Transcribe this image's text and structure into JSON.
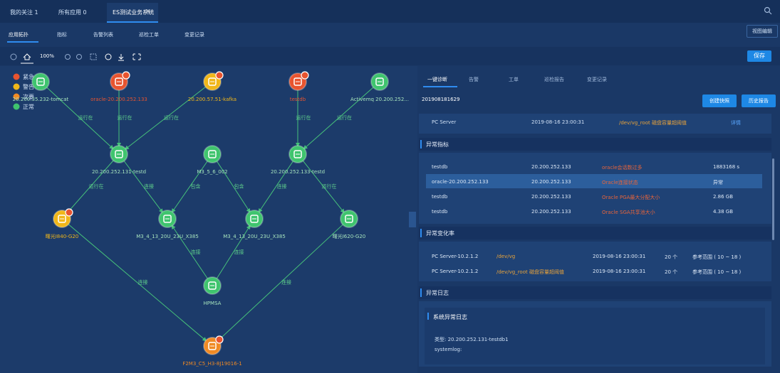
{
  "tabs": [
    "我的关注 1",
    "所有应用 0",
    "ES测试业务系统"
  ],
  "close_icon": "×",
  "subtabs": [
    "应用拓扑",
    "指标",
    "告警列表",
    "巡检工单",
    "变更记录"
  ],
  "view_edit": "视图编辑",
  "zoom": "100%",
  "save": "保存",
  "legend": [
    {
      "label": "紧急",
      "color": "#e8542f"
    },
    {
      "label": "警告",
      "color": "#f0b619"
    },
    {
      "label": "次要",
      "color": "#f08a24"
    },
    {
      "label": "正常",
      "color": "#3fc46e"
    }
  ],
  "nodes": [
    {
      "label": "20.200.35.232-tomcat",
      "color": "#3fc46e",
      "alarm": false
    },
    {
      "label": "oracle-20.200.252.133",
      "color": "#e8542f",
      "alarm": true
    },
    {
      "label": "20.200.57.51-kafka",
      "color": "#f0b619",
      "alarm": true
    },
    {
      "label": "testdb",
      "color": "#e8542f",
      "alarm": true
    },
    {
      "label": "Activemq 20.200.252...",
      "color": "#3fc46e",
      "alarm": false
    },
    {
      "label": "20.200.252.131-testd",
      "color": "#3fc46e",
      "alarm": false
    },
    {
      "label": "M3_5_6_002",
      "color": "#3fc46e",
      "alarm": false
    },
    {
      "label": "20.200.252.133-testd",
      "color": "#3fc46e",
      "alarm": false
    },
    {
      "label": "曙光I840-G20",
      "color": "#f0b619",
      "alarm": true
    },
    {
      "label": "M3_4_13_20U_23U_X385",
      "color": "#3fc46e",
      "alarm": false
    },
    {
      "label": "M3_4_13_20U_23U_X385",
      "color": "#3fc46e",
      "alarm": false
    },
    {
      "label": "曙光I620-G20",
      "color": "#3fc46e",
      "alarm": false
    },
    {
      "label": "HPMSA",
      "color": "#3fc46e",
      "alarm": false
    },
    {
      "label": "F2M3_C5_H3-8J19016-1",
      "color": "#f08a24",
      "alarm": true
    }
  ],
  "edge_labels": [
    "运行在",
    "运行在",
    "运行在",
    "运行在",
    "运行在",
    "运行在",
    "连接",
    "包含",
    "包含",
    "连接",
    "运行在",
    "连接",
    "连接",
    "连接",
    "连接"
  ],
  "panel": {
    "tabs": [
      "一键诊断",
      "告警",
      "工单",
      "巡检报告",
      "变更记录"
    ],
    "id": "201908181629",
    "buttons": [
      "创建快照",
      "历史报告"
    ],
    "top_row": [
      "PC Server",
      "2019-08-16 23:00:31",
      "/dev/vg_root 磁盘容量超阈值",
      "详情"
    ],
    "metrics": {
      "title": "异常指标",
      "rows": [
        [
          "testdb",
          "20.200.252.133",
          "oracle会话数过多",
          "1883168 s"
        ],
        [
          "oracle-20.200.252.133",
          "20.200.252.133",
          "Oracle连接状态",
          "异常"
        ],
        [
          "testdb",
          "20.200.252.133",
          "Oracle PGA最大分配大小",
          "2.86 GB"
        ],
        [
          "testdb",
          "20.200.252.133",
          "Oracle SGA共享池大小",
          "4.38 GB"
        ]
      ]
    },
    "changes": {
      "title": "异常变化率",
      "rows": [
        [
          "PC Server-10.2.1.2",
          "/dev/vg",
          "2019-08-16 23:00:31",
          "20 个",
          "参考范围 ( 10 ~ 18 )"
        ],
        [
          "PC Server-10.2.1.2",
          "/dev/vg_root 磁盘容量超阈值",
          "2019-08-16 23:00:31",
          "20 个",
          "参考范围 ( 10 ~ 18 )"
        ]
      ]
    },
    "logs": {
      "title": "异常日志",
      "box_title": "系统异常日志",
      "lines": [
        "类型: 20.200.252.131-testdb1",
        "systemlog:"
      ]
    }
  }
}
